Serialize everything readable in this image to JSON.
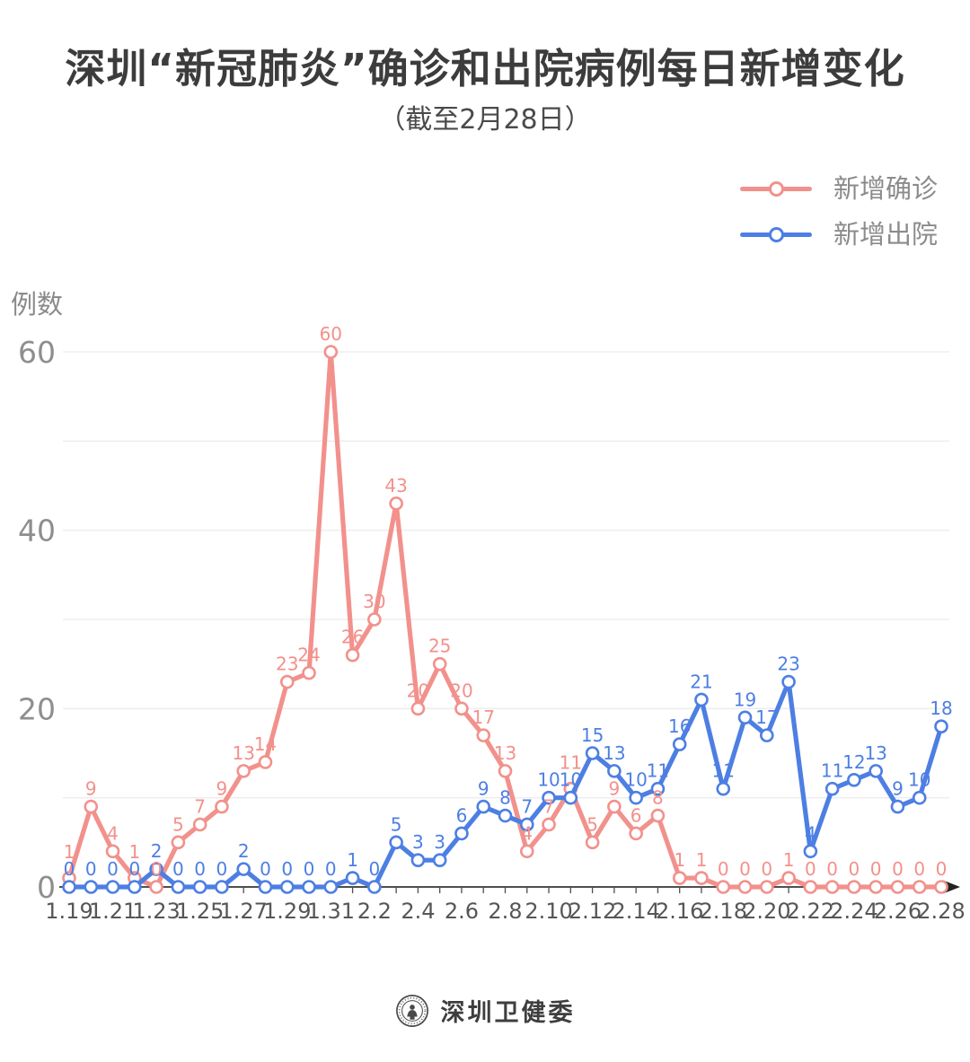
{
  "title": "深圳“新冠肺炎”确诊和出院病例每日新增变化",
  "subtitle": "（截至2月28日）",
  "y_axis_title": "例数",
  "legend": [
    {
      "label": "新增确诊",
      "color": "#f2918c"
    },
    {
      "label": "新增出院",
      "color": "#4d7fe3"
    }
  ],
  "footer": {
    "text": "深圳卫健委"
  },
  "colors": {
    "confirmed": "#f2918c",
    "discharged": "#4d7fe3",
    "grid": "#ececec",
    "axis": "#4f4f4f",
    "y_tick_text": "#8e8e8e",
    "x_tick_text": "#565656",
    "arrow": "#222222"
  },
  "chart_data": {
    "type": "line",
    "x": [
      "1.19",
      "1.20",
      "1.21",
      "1.22",
      "1.23",
      "1.24",
      "1.25",
      "1.26",
      "1.27",
      "1.28",
      "1.29",
      "1.30",
      "1.31",
      "2.1",
      "2.2",
      "2.3",
      "2.4",
      "2.5",
      "2.6",
      "2.7",
      "2.8",
      "2.9",
      "2.10",
      "2.11",
      "2.12",
      "2.13",
      "2.14",
      "2.15",
      "2.16",
      "2.17",
      "2.18",
      "2.19",
      "2.20",
      "2.21",
      "2.22",
      "2.23",
      "2.24",
      "2.25",
      "2.26",
      "2.27",
      "2.28"
    ],
    "x_tick_shown_every": 2,
    "series": [
      {
        "id": "confirmed",
        "name": "新增确诊",
        "color": "#f2918c",
        "values": [
          1,
          9,
          4,
          1,
          0,
          5,
          7,
          9,
          13,
          14,
          23,
          24,
          60,
          26,
          30,
          43,
          20,
          25,
          20,
          17,
          13,
          4,
          7,
          11,
          5,
          9,
          6,
          8,
          1,
          1,
          0,
          0,
          0,
          1,
          0,
          0,
          0,
          0,
          0,
          0,
          0
        ]
      },
      {
        "id": "discharged",
        "name": "新增出院",
        "color": "#4d7fe3",
        "values": [
          0,
          0,
          0,
          0,
          2,
          0,
          0,
          0,
          2,
          0,
          0,
          0,
          0,
          1,
          0,
          5,
          3,
          3,
          6,
          9,
          8,
          7,
          10,
          10,
          15,
          13,
          10,
          11,
          16,
          21,
          11,
          19,
          17,
          23,
          4,
          11,
          12,
          13,
          9,
          10,
          18
        ]
      }
    ],
    "ylim": [
      0,
      60
    ],
    "y_ticks": [
      0,
      20,
      40,
      60
    ],
    "grid_interval": 10,
    "grid": true,
    "legend_position": "top-right",
    "marker": "open-circle",
    "point_labels": true
  }
}
